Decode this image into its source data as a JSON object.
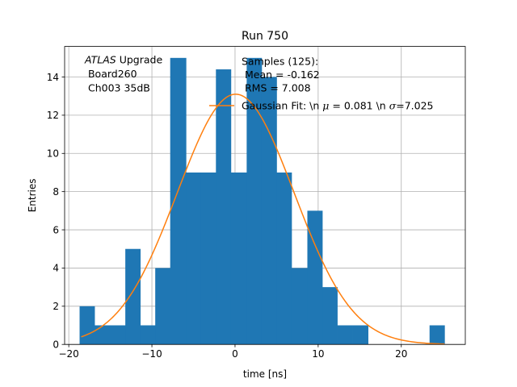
{
  "chart_data": {
    "type": "bar",
    "title": "Run 750",
    "xlabel": "time [ns]",
    "ylabel": "Entries",
    "xlim": [
      -20.5,
      27.7
    ],
    "ylim": [
      0,
      15.6
    ],
    "xticks": [
      -20,
      -10,
      0,
      10,
      20
    ],
    "xtick_labels": [
      "−20",
      "−10",
      "0",
      "10",
      "20"
    ],
    "yticks": [
      0,
      2,
      4,
      6,
      8,
      10,
      12,
      14
    ],
    "ytick_labels": [
      "0",
      "2",
      "4",
      "6",
      "8",
      "10",
      "12",
      "14"
    ],
    "grid": true,
    "legend_position": "upper-center",
    "colors": {
      "histogram": "#1f77b4",
      "fit": "#ff7f0e"
    },
    "annotation": {
      "italic": "ATLAS",
      "suffix": " Upgrade",
      "line2": " Board260",
      "line3": " Ch003 35dB"
    },
    "series": [
      {
        "name": "Samples (125):",
        "name_line2": " Mean = -0.162",
        "name_line3": " RMS = 7.008",
        "kind": "histogram",
        "bins": [
          {
            "x0": -18.7,
            "x1": -16.9,
            "count": 2
          },
          {
            "x0": -16.9,
            "x1": -15.0,
            "count": 1
          },
          {
            "x0": -15.0,
            "x1": -13.2,
            "count": 1
          },
          {
            "x0": -13.2,
            "x1": -11.4,
            "count": 5
          },
          {
            "x0": -11.4,
            "x1": -9.6,
            "count": 1
          },
          {
            "x0": -9.6,
            "x1": -7.8,
            "count": 4
          },
          {
            "x0": -7.8,
            "x1": -5.9,
            "count": 15
          },
          {
            "x0": -5.9,
            "x1": -4.1,
            "count": 9
          },
          {
            "x0": -4.1,
            "x1": -2.3,
            "count": 9
          },
          {
            "x0": -2.3,
            "x1": -0.5,
            "count": 14.4
          },
          {
            "x0": -0.5,
            "x1": 1.4,
            "count": 9
          },
          {
            "x0": 1.4,
            "x1": 3.2,
            "count": 15
          },
          {
            "x0": 3.2,
            "x1": 5.0,
            "count": 14
          },
          {
            "x0": 5.0,
            "x1": 6.8,
            "count": 9
          },
          {
            "x0": 6.8,
            "x1": 8.7,
            "count": 4
          },
          {
            "x0": 8.7,
            "x1": 10.5,
            "count": 7
          },
          {
            "x0": 10.5,
            "x1": 12.3,
            "count": 3
          },
          {
            "x0": 12.3,
            "x1": 14.1,
            "count": 1
          },
          {
            "x0": 14.1,
            "x1": 16.0,
            "count": 1
          },
          {
            "x0": 23.4,
            "x1": 25.2,
            "count": 1
          }
        ]
      },
      {
        "name": "Gaussian Fit: \\n $\\mu$ = 0.081 \\n $\\sigma$=7.025",
        "label_prefix": "Gaussian Fit: \\n ",
        "mu_symbol": "μ",
        "label_mid": " = 0.081 \\n ",
        "sigma_symbol": "σ",
        "label_suffix": "=7.025",
        "kind": "line",
        "mu": 0.081,
        "sigma": 7.025,
        "peak": 13.1,
        "x_range": [
          -18.5,
          25.2
        ]
      }
    ]
  }
}
